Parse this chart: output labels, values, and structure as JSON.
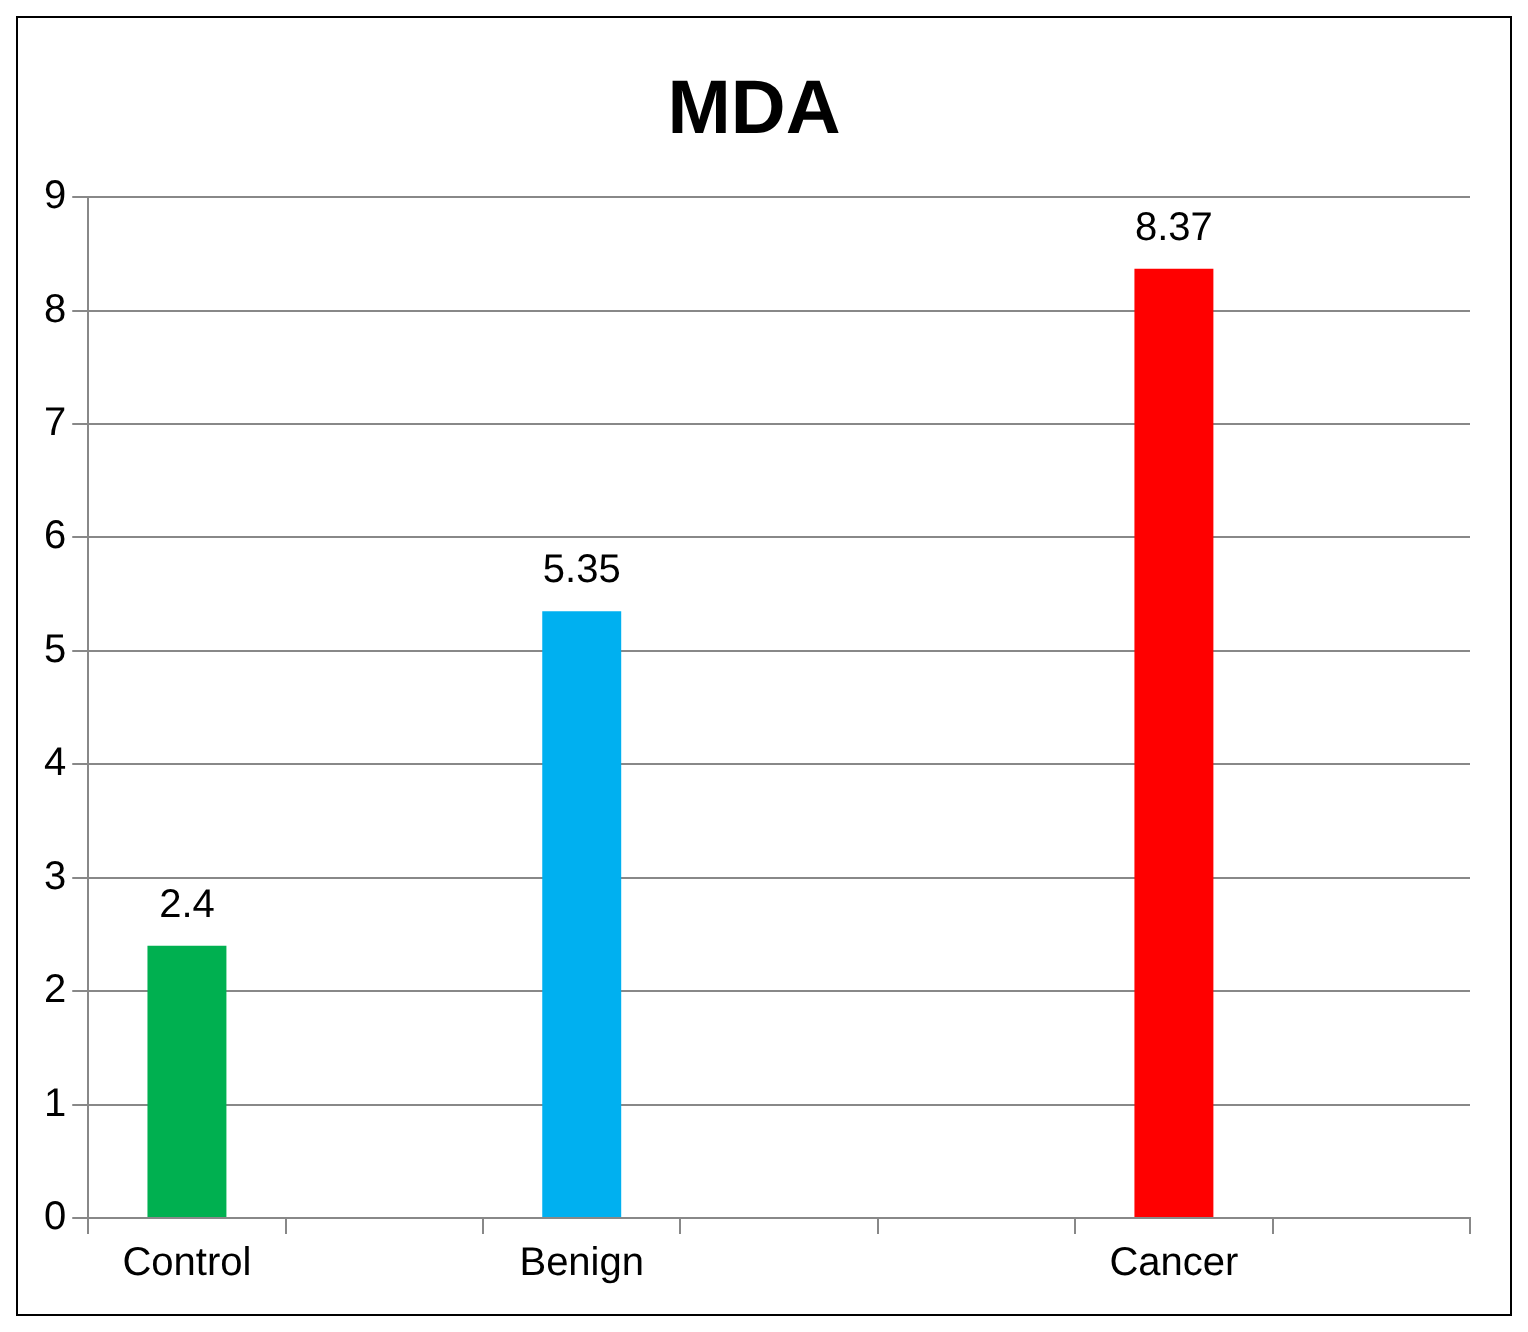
{
  "chart_data": {
    "type": "bar",
    "title": "MDA",
    "categories": [
      "Control",
      null,
      "Benign",
      null,
      null,
      "Cancer",
      null
    ],
    "values": [
      2.4,
      null,
      5.35,
      null,
      null,
      8.37,
      null
    ],
    "colors": [
      "#00b050",
      "#000000",
      "#00b0f0",
      "#000000",
      "#000000",
      "#ff0000",
      "#000000"
    ],
    "ylim": [
      0,
      9
    ],
    "yticks": [
      0,
      1,
      2,
      3,
      4,
      5,
      6,
      7,
      8,
      9
    ],
    "grid": "y",
    "data_labels": true,
    "legend": false
  }
}
